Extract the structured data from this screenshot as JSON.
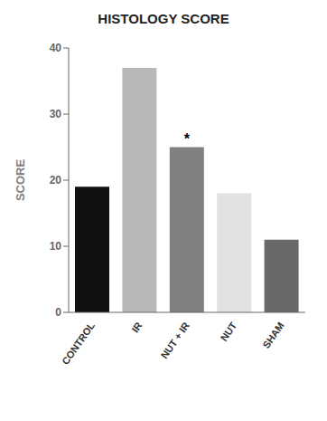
{
  "chart_data": {
    "type": "bar",
    "title": "HISTOLOGY SCORE",
    "ylabel": "SCORE",
    "categories": [
      "CONTROL",
      "IR",
      "NUT + IR",
      "NUT",
      "SHAM"
    ],
    "values": [
      19,
      37,
      25,
      18,
      11
    ],
    "colors": [
      "#111111",
      "#b8b8b8",
      "#808080",
      "#e2e2e2",
      "#696969"
    ],
    "ylim": [
      0,
      40
    ],
    "yticks": [
      0,
      10,
      20,
      30,
      40
    ],
    "annotations": [
      {
        "category": "NUT + IR",
        "text": "*"
      }
    ],
    "grid": false
  }
}
